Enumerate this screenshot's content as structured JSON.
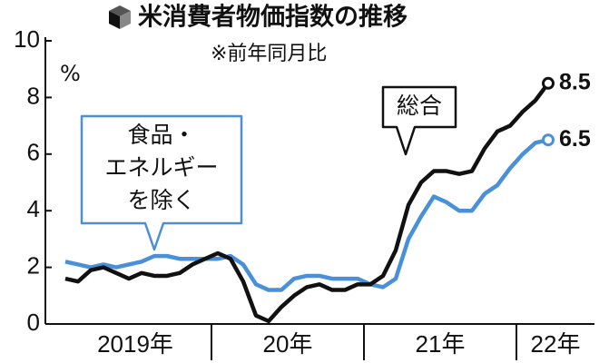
{
  "chart_data": {
    "type": "line",
    "title": "米消費者物価指数の推移",
    "subtitle": "※前年同月比",
    "y_unit": "%",
    "year_labels": [
      "2019年",
      "20年",
      "21年",
      "22年"
    ],
    "categories": [
      null,
      null,
      null,
      null,
      null,
      null,
      null,
      null,
      null,
      null,
      null,
      null,
      null,
      null,
      null,
      null,
      null,
      null,
      null,
      null,
      null,
      null,
      null,
      null,
      null,
      null,
      null,
      null,
      null,
      null,
      null,
      null,
      null,
      null,
      null,
      null,
      null,
      null,
      null
    ],
    "series": [
      {
        "name": "総合",
        "color": "#111111",
        "values": [
          1.6,
          1.5,
          1.9,
          2.0,
          1.8,
          1.6,
          1.8,
          1.7,
          1.7,
          1.8,
          2.1,
          2.3,
          2.5,
          2.3,
          1.5,
          0.3,
          0.1,
          0.6,
          1.0,
          1.3,
          1.4,
          1.2,
          1.2,
          1.4,
          1.4,
          1.7,
          2.6,
          4.2,
          5.0,
          5.4,
          5.4,
          5.3,
          5.4,
          6.2,
          6.8,
          7.0,
          7.5,
          7.9,
          8.5
        ]
      },
      {
        "name": [
          "食品・",
          "エネルギー",
          "を除く"
        ],
        "color": "#4a90d9",
        "values": [
          2.2,
          2.1,
          2.0,
          2.1,
          2.0,
          2.1,
          2.2,
          2.4,
          2.4,
          2.3,
          2.3,
          2.3,
          2.3,
          2.4,
          2.1,
          1.4,
          1.2,
          1.2,
          1.6,
          1.7,
          1.7,
          1.6,
          1.6,
          1.6,
          1.4,
          1.3,
          1.6,
          3.0,
          3.8,
          4.5,
          4.3,
          4.0,
          4.0,
          4.6,
          4.9,
          5.5,
          6.0,
          6.4,
          6.5
        ]
      }
    ],
    "ylim": [
      0,
      10
    ],
    "yticks": [
      0,
      2,
      4,
      6,
      8,
      10
    ]
  }
}
